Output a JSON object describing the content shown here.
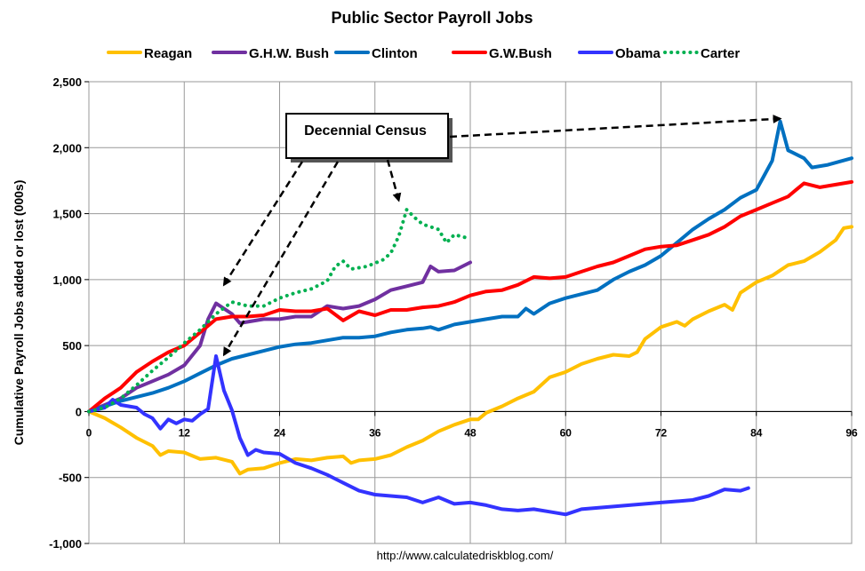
{
  "chart_data": {
    "type": "line",
    "title": "Public Sector Payroll Jobs",
    "ylabel": "Cumulative Payroll Jobs added or lost (000s)",
    "xlabel": "",
    "xlim": [
      0,
      96
    ],
    "ylim": [
      -1000,
      2500
    ],
    "x_ticks": [
      0,
      12,
      24,
      36,
      48,
      60,
      72,
      84,
      96
    ],
    "y_ticks": [
      -1000,
      -500,
      0,
      500,
      1000,
      1500,
      2000,
      2500
    ],
    "y_tick_labels": [
      "-1,000",
      "-500",
      "0",
      "500",
      "1,000",
      "1,500",
      "2,000",
      "2,500"
    ],
    "grid": true,
    "legend_position": "top",
    "source": "http://www.calculatedriskblog.com/",
    "annotation": {
      "text": "Decennial Census",
      "targets": [
        [
          17,
          960
        ],
        [
          17,
          430
        ],
        [
          39,
          1600
        ],
        [
          87,
          2220
        ]
      ]
    },
    "series": [
      {
        "name": "Reagan",
        "color": "#FFC000",
        "style": "solid",
        "points": [
          [
            0,
            0
          ],
          [
            2,
            -50
          ],
          [
            4,
            -120
          ],
          [
            6,
            -200
          ],
          [
            8,
            -260
          ],
          [
            9,
            -330
          ],
          [
            10,
            -300
          ],
          [
            12,
            -310
          ],
          [
            14,
            -360
          ],
          [
            16,
            -350
          ],
          [
            18,
            -380
          ],
          [
            19,
            -470
          ],
          [
            20,
            -440
          ],
          [
            22,
            -430
          ],
          [
            24,
            -390
          ],
          [
            26,
            -360
          ],
          [
            28,
            -370
          ],
          [
            30,
            -350
          ],
          [
            32,
            -340
          ],
          [
            33,
            -390
          ],
          [
            34,
            -370
          ],
          [
            36,
            -360
          ],
          [
            38,
            -330
          ],
          [
            40,
            -270
          ],
          [
            42,
            -220
          ],
          [
            44,
            -150
          ],
          [
            46,
            -100
          ],
          [
            48,
            -60
          ],
          [
            49,
            -60
          ],
          [
            50,
            -10
          ],
          [
            52,
            40
          ],
          [
            54,
            100
          ],
          [
            56,
            150
          ],
          [
            58,
            260
          ],
          [
            60,
            300
          ],
          [
            62,
            360
          ],
          [
            64,
            400
          ],
          [
            66,
            430
          ],
          [
            68,
            420
          ],
          [
            69,
            450
          ],
          [
            70,
            550
          ],
          [
            72,
            640
          ],
          [
            74,
            680
          ],
          [
            75,
            650
          ],
          [
            76,
            700
          ],
          [
            78,
            760
          ],
          [
            80,
            810
          ],
          [
            81,
            770
          ],
          [
            82,
            900
          ],
          [
            84,
            980
          ],
          [
            86,
            1030
          ],
          [
            88,
            1110
          ],
          [
            90,
            1140
          ],
          [
            92,
            1210
          ],
          [
            94,
            1300
          ],
          [
            95,
            1390
          ],
          [
            96,
            1400
          ]
        ]
      },
      {
        "name": "G.H.W. Bush",
        "color": "#7030A0",
        "style": "solid",
        "points": [
          [
            0,
            0
          ],
          [
            2,
            50
          ],
          [
            4,
            100
          ],
          [
            6,
            180
          ],
          [
            8,
            230
          ],
          [
            10,
            280
          ],
          [
            12,
            350
          ],
          [
            14,
            500
          ],
          [
            15,
            700
          ],
          [
            16,
            820
          ],
          [
            17,
            780
          ],
          [
            18,
            740
          ],
          [
            19,
            670
          ],
          [
            20,
            680
          ],
          [
            22,
            700
          ],
          [
            24,
            700
          ],
          [
            26,
            720
          ],
          [
            28,
            720
          ],
          [
            30,
            800
          ],
          [
            32,
            780
          ],
          [
            34,
            800
          ],
          [
            36,
            850
          ],
          [
            38,
            920
          ],
          [
            40,
            950
          ],
          [
            42,
            980
          ],
          [
            43,
            1100
          ],
          [
            44,
            1060
          ],
          [
            46,
            1070
          ],
          [
            48,
            1130
          ]
        ]
      },
      {
        "name": "Clinton",
        "color": "#0070C0",
        "style": "solid",
        "points": [
          [
            0,
            0
          ],
          [
            2,
            40
          ],
          [
            4,
            80
          ],
          [
            6,
            110
          ],
          [
            8,
            140
          ],
          [
            10,
            180
          ],
          [
            12,
            230
          ],
          [
            14,
            290
          ],
          [
            16,
            350
          ],
          [
            18,
            400
          ],
          [
            20,
            430
          ],
          [
            22,
            460
          ],
          [
            24,
            490
          ],
          [
            26,
            510
          ],
          [
            28,
            520
          ],
          [
            30,
            540
          ],
          [
            32,
            560
          ],
          [
            34,
            560
          ],
          [
            36,
            570
          ],
          [
            38,
            600
          ],
          [
            40,
            620
          ],
          [
            42,
            630
          ],
          [
            43,
            640
          ],
          [
            44,
            620
          ],
          [
            46,
            660
          ],
          [
            48,
            680
          ],
          [
            50,
            700
          ],
          [
            52,
            720
          ],
          [
            54,
            720
          ],
          [
            55,
            780
          ],
          [
            56,
            740
          ],
          [
            58,
            820
          ],
          [
            60,
            860
          ],
          [
            62,
            890
          ],
          [
            64,
            920
          ],
          [
            66,
            1000
          ],
          [
            68,
            1060
          ],
          [
            70,
            1110
          ],
          [
            72,
            1180
          ],
          [
            74,
            1280
          ],
          [
            76,
            1380
          ],
          [
            78,
            1460
          ],
          [
            80,
            1530
          ],
          [
            82,
            1620
          ],
          [
            84,
            1680
          ],
          [
            85,
            1790
          ],
          [
            86,
            1900
          ],
          [
            87,
            2200
          ],
          [
            88,
            1980
          ],
          [
            90,
            1920
          ],
          [
            91,
            1850
          ],
          [
            93,
            1870
          ],
          [
            96,
            1920
          ]
        ]
      },
      {
        "name": "G.W.Bush",
        "color": "#FF0000",
        "style": "solid",
        "points": [
          [
            0,
            0
          ],
          [
            2,
            100
          ],
          [
            4,
            180
          ],
          [
            6,
            300
          ],
          [
            8,
            380
          ],
          [
            10,
            450
          ],
          [
            12,
            500
          ],
          [
            14,
            600
          ],
          [
            16,
            700
          ],
          [
            18,
            720
          ],
          [
            20,
            720
          ],
          [
            22,
            730
          ],
          [
            24,
            770
          ],
          [
            26,
            760
          ],
          [
            28,
            760
          ],
          [
            30,
            780
          ],
          [
            32,
            690
          ],
          [
            34,
            760
          ],
          [
            36,
            730
          ],
          [
            38,
            770
          ],
          [
            40,
            770
          ],
          [
            42,
            790
          ],
          [
            44,
            800
          ],
          [
            46,
            830
          ],
          [
            48,
            880
          ],
          [
            50,
            910
          ],
          [
            52,
            920
          ],
          [
            54,
            960
          ],
          [
            56,
            1020
          ],
          [
            58,
            1010
          ],
          [
            60,
            1020
          ],
          [
            62,
            1060
          ],
          [
            64,
            1100
          ],
          [
            66,
            1130
          ],
          [
            68,
            1180
          ],
          [
            70,
            1230
          ],
          [
            72,
            1250
          ],
          [
            74,
            1260
          ],
          [
            76,
            1300
          ],
          [
            78,
            1340
          ],
          [
            80,
            1400
          ],
          [
            82,
            1480
          ],
          [
            84,
            1530
          ],
          [
            86,
            1580
          ],
          [
            88,
            1630
          ],
          [
            89,
            1680
          ],
          [
            90,
            1730
          ],
          [
            92,
            1700
          ],
          [
            94,
            1720
          ],
          [
            96,
            1740
          ]
        ]
      },
      {
        "name": "Obama",
        "color": "#3333FF",
        "style": "solid",
        "points": [
          [
            0,
            0
          ],
          [
            2,
            30
          ],
          [
            3,
            90
          ],
          [
            4,
            50
          ],
          [
            6,
            30
          ],
          [
            7,
            -20
          ],
          [
            8,
            -50
          ],
          [
            9,
            -130
          ],
          [
            10,
            -60
          ],
          [
            11,
            -90
          ],
          [
            12,
            -60
          ],
          [
            13,
            -70
          ],
          [
            14,
            -20
          ],
          [
            15,
            20
          ],
          [
            16,
            420
          ],
          [
            17,
            160
          ],
          [
            18,
            10
          ],
          [
            19,
            -200
          ],
          [
            20,
            -330
          ],
          [
            21,
            -290
          ],
          [
            22,
            -310
          ],
          [
            24,
            -320
          ],
          [
            26,
            -390
          ],
          [
            28,
            -430
          ],
          [
            30,
            -480
          ],
          [
            32,
            -540
          ],
          [
            34,
            -600
          ],
          [
            36,
            -630
          ],
          [
            38,
            -640
          ],
          [
            40,
            -650
          ],
          [
            42,
            -690
          ],
          [
            44,
            -650
          ],
          [
            46,
            -700
          ],
          [
            48,
            -690
          ],
          [
            50,
            -710
          ],
          [
            52,
            -740
          ],
          [
            54,
            -750
          ],
          [
            56,
            -740
          ],
          [
            58,
            -760
          ],
          [
            60,
            -780
          ],
          [
            62,
            -740
          ],
          [
            64,
            -730
          ],
          [
            66,
            -720
          ],
          [
            68,
            -710
          ],
          [
            70,
            -700
          ],
          [
            72,
            -690
          ],
          [
            74,
            -680
          ],
          [
            76,
            -670
          ],
          [
            78,
            -640
          ],
          [
            80,
            -590
          ],
          [
            82,
            -600
          ],
          [
            83,
            -580
          ]
        ]
      },
      {
        "name": "Carter",
        "color": "#00B050",
        "style": "dotted",
        "points": [
          [
            0,
            0
          ],
          [
            2,
            30
          ],
          [
            4,
            100
          ],
          [
            6,
            200
          ],
          [
            8,
            310
          ],
          [
            10,
            410
          ],
          [
            12,
            520
          ],
          [
            14,
            620
          ],
          [
            16,
            740
          ],
          [
            18,
            830
          ],
          [
            20,
            800
          ],
          [
            22,
            800
          ],
          [
            24,
            860
          ],
          [
            26,
            900
          ],
          [
            28,
            930
          ],
          [
            30,
            990
          ],
          [
            31,
            1100
          ],
          [
            32,
            1140
          ],
          [
            33,
            1080
          ],
          [
            35,
            1100
          ],
          [
            37,
            1150
          ],
          [
            38,
            1200
          ],
          [
            39,
            1330
          ],
          [
            40,
            1530
          ],
          [
            41,
            1470
          ],
          [
            42,
            1420
          ],
          [
            44,
            1380
          ],
          [
            45,
            1280
          ],
          [
            46,
            1340
          ],
          [
            48,
            1310
          ]
        ]
      }
    ]
  }
}
